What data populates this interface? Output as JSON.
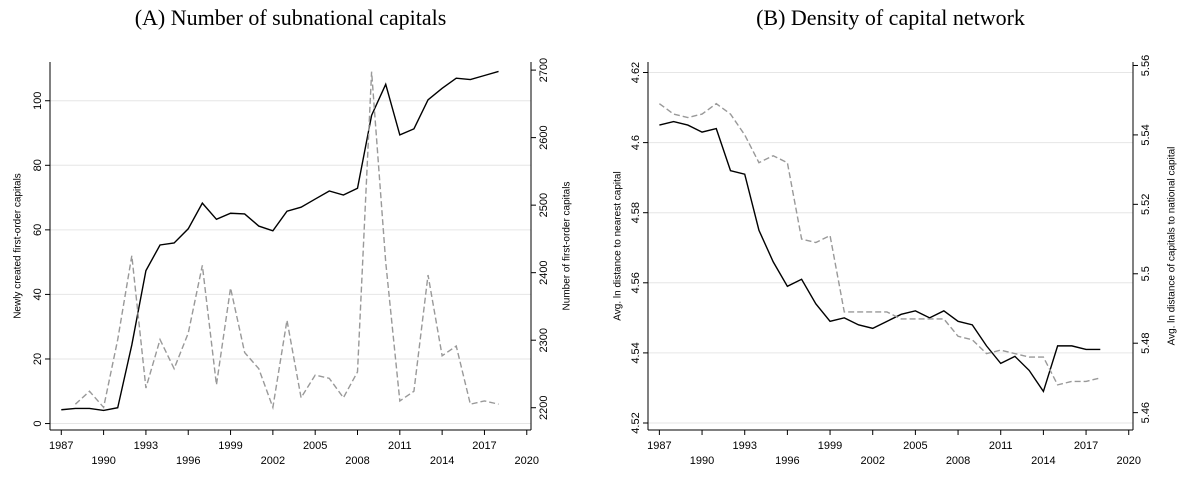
{
  "chart_data": [
    {
      "type": "line",
      "title": "(A) Number of subnational capitals",
      "ylabel": "Newly created first-order capitals",
      "y2label": "Number of first-order capitals",
      "x": [
        1987,
        1988,
        1989,
        1990,
        1991,
        1992,
        1993,
        1994,
        1995,
        1996,
        1997,
        1998,
        1999,
        2000,
        2001,
        2002,
        2003,
        2004,
        2005,
        2006,
        2007,
        2008,
        2009,
        2010,
        2011,
        2012,
        2013,
        2014,
        2015,
        2016,
        2017,
        2018
      ],
      "xlim": [
        1986.2,
        2020.3
      ],
      "xticks": [
        1987,
        1990,
        1993,
        1996,
        1999,
        2002,
        2005,
        2008,
        2011,
        2014,
        2017,
        2020
      ],
      "ylim": [
        -2,
        112
      ],
      "yticks": [
        0,
        20,
        40,
        60,
        80,
        100
      ],
      "y2lim": [
        2167,
        2712
      ],
      "y2ticks": [
        2200,
        2300,
        2400,
        2500,
        2600,
        2700
      ],
      "grid": true,
      "series": [
        {
          "color": "#000000",
          "axis": "y2",
          "dash": "solid",
          "values": [
            2197,
            2199,
            2199,
            2196,
            2200,
            2293,
            2403,
            2441,
            2444,
            2465,
            2503,
            2479,
            2488,
            2487,
            2469,
            2462,
            2491,
            2497,
            2509,
            2521,
            2515,
            2525,
            2633,
            2679,
            2604,
            2613,
            2656,
            2673,
            2688,
            2686,
            2692,
            2698
          ]
        },
        {
          "color": "#999999",
          "axis": "y",
          "dash": "dashed",
          "values": [
            null,
            6,
            10,
            5,
            26,
            52,
            11,
            26,
            17,
            28,
            49,
            12,
            42,
            22,
            17,
            5,
            32,
            8,
            15,
            14,
            8,
            16,
            109,
            50,
            7,
            10,
            46,
            21,
            24,
            6,
            7,
            6
          ]
        }
      ]
    },
    {
      "type": "line",
      "title": "(B) Density of capital network",
      "ylabel": "Avg. ln distance to nearest capital",
      "y2label": "Avg. ln distance of capitals to national capital",
      "x": [
        1987,
        1988,
        1989,
        1990,
        1991,
        1992,
        1993,
        1994,
        1995,
        1996,
        1997,
        1998,
        1999,
        2000,
        2001,
        2002,
        2003,
        2004,
        2005,
        2006,
        2007,
        2008,
        2009,
        2010,
        2011,
        2012,
        2013,
        2014,
        2015,
        2016,
        2017,
        2018
      ],
      "xlim": [
        1986.2,
        2020.3
      ],
      "xticks": [
        1987,
        1990,
        1993,
        1996,
        1999,
        2002,
        2005,
        2008,
        2011,
        2014,
        2017,
        2020
      ],
      "ylim": [
        4.518,
        4.623
      ],
      "yticks": [
        4.52,
        4.54,
        4.56,
        4.58,
        4.6,
        4.62
      ],
      "y2lim": [
        5.455,
        5.561
      ],
      "y2ticks": [
        5.46,
        5.48,
        5.5,
        5.52,
        5.54,
        5.56
      ],
      "grid": true,
      "series": [
        {
          "color": "#000000",
          "axis": "y",
          "dash": "solid",
          "values": [
            4.605,
            4.606,
            4.605,
            4.603,
            4.604,
            4.592,
            4.591,
            4.575,
            4.566,
            4.559,
            4.561,
            4.554,
            4.549,
            4.55,
            4.548,
            4.547,
            4.549,
            4.551,
            4.552,
            4.55,
            4.552,
            4.549,
            4.548,
            4.542,
            4.537,
            4.539,
            4.535,
            4.529,
            4.542,
            4.542,
            4.541,
            4.541
          ]
        },
        {
          "color": "#999999",
          "axis": "y2",
          "dash": "dashed",
          "values": [
            5.549,
            5.546,
            5.545,
            5.546,
            5.549,
            5.546,
            5.54,
            5.532,
            5.534,
            5.532,
            5.51,
            5.509,
            5.511,
            5.489,
            5.489,
            5.489,
            5.489,
            5.487,
            5.487,
            5.487,
            5.487,
            5.482,
            5.481,
            5.477,
            5.478,
            5.477,
            5.476,
            5.476,
            5.468,
            5.469,
            5.469,
            5.47
          ]
        }
      ]
    }
  ]
}
